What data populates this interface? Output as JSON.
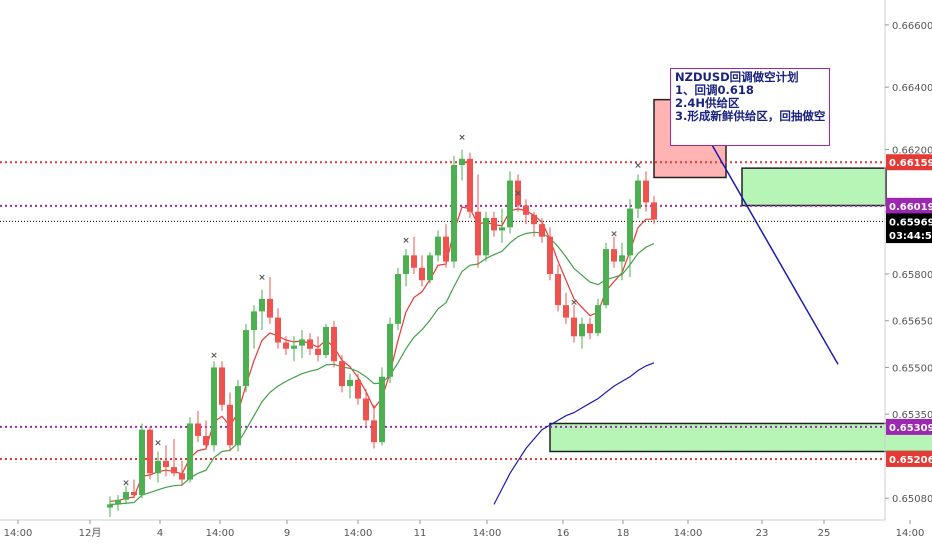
{
  "chart_data": {
    "type": "candlestick",
    "symbol": "NZDUSD",
    "timeframe_note": "4H",
    "ylim": [
      0.6501,
      0.6668
    ],
    "y_ticks": [
      "0.66600",
      "0.66400",
      "0.66200",
      "0.66000",
      "0.65800",
      "0.65650",
      "0.65500",
      "0.65350",
      "0.65080"
    ],
    "x_ticks": [
      "14:00",
      "12月",
      "4",
      "14:00",
      "9",
      "14:00",
      "11",
      "14:00",
      "16",
      "18",
      "14:00",
      "23",
      "25",
      "14:00"
    ],
    "price_labels": [
      {
        "text": "0.66159",
        "value": 0.66159,
        "color": "#e53935"
      },
      {
        "text": "0.66019",
        "value": 0.66019,
        "color": "#9c27b0"
      },
      {
        "text": "0.65969",
        "value": 0.65969,
        "color": "#000000"
      },
      {
        "text": "03:44:54",
        "value": 0.65925,
        "color": "#000000"
      },
      {
        "text": "0.65309",
        "value": 0.65309,
        "color": "#9c27b0"
      },
      {
        "text": "0.65206",
        "value": 0.65206,
        "color": "#e53935"
      }
    ],
    "horizontal_levels": [
      {
        "value": 0.66159,
        "color": "#e53935",
        "style": "dotted"
      },
      {
        "value": 0.66019,
        "color": "#9c27b0",
        "style": "dotted"
      },
      {
        "value": 0.65969,
        "color": "#000000",
        "style": "dotted-thin"
      },
      {
        "value": 0.65309,
        "color": "#9c27b0",
        "style": "dotted"
      },
      {
        "value": 0.65206,
        "color": "#e53935",
        "style": "dotted"
      }
    ],
    "zones": [
      {
        "name": "supply",
        "from_t": 68,
        "to_t": 77,
        "top": 0.6636,
        "bottom": 0.6611,
        "fill": "#ffb3b3"
      },
      {
        "name": "new-supply",
        "from_t": 79,
        "to_t": 97,
        "top": 0.6614,
        "bottom": 0.6602,
        "fill": "#b6f5b6"
      },
      {
        "name": "demand",
        "from_t": 55,
        "to_t": 109,
        "top": 0.6532,
        "bottom": 0.6523,
        "fill": "#b6f5b6"
      }
    ],
    "trendlines": [
      {
        "t1": 72,
        "v1": 0.6636,
        "t2": 91,
        "v2": 0.6551,
        "color": "#1a1ab3"
      },
      {
        "t1": 104,
        "v1": 0.6612,
        "t2": 124,
        "v2": 0.6533,
        "color": "#1a1ab3"
      }
    ],
    "candles": [
      [
        0.6505,
        0.65085,
        0.6502,
        0.6506
      ],
      [
        0.6506,
        0.6509,
        0.6504,
        0.65075
      ],
      [
        0.65075,
        0.6512,
        0.6506,
        0.651
      ],
      [
        0.651,
        0.6514,
        0.6508,
        0.6509
      ],
      [
        0.6509,
        0.6532,
        0.6508,
        0.653
      ],
      [
        0.653,
        0.6531,
        0.6514,
        0.6516
      ],
      [
        0.6516,
        0.6523,
        0.6513,
        0.652
      ],
      [
        0.652,
        0.6525,
        0.6515,
        0.6518
      ],
      [
        0.6518,
        0.6527,
        0.6515,
        0.6516
      ],
      [
        0.6516,
        0.652,
        0.6512,
        0.6514
      ],
      [
        0.6514,
        0.6534,
        0.6513,
        0.6532
      ],
      [
        0.6532,
        0.6536,
        0.6526,
        0.6528
      ],
      [
        0.6528,
        0.6533,
        0.6524,
        0.6525
      ],
      [
        0.6525,
        0.6552,
        0.6523,
        0.655
      ],
      [
        0.655,
        0.6552,
        0.6536,
        0.6538
      ],
      [
        0.6538,
        0.6542,
        0.6523,
        0.6525
      ],
      [
        0.6525,
        0.6546,
        0.6523,
        0.6544
      ],
      [
        0.6544,
        0.6564,
        0.6542,
        0.6562
      ],
      [
        0.6562,
        0.657,
        0.6556,
        0.6568
      ],
      [
        0.6568,
        0.6575,
        0.6562,
        0.6572
      ],
      [
        0.6572,
        0.6579,
        0.6564,
        0.6566
      ],
      [
        0.6566,
        0.6569,
        0.6556,
        0.6558
      ],
      [
        0.6558,
        0.656,
        0.6554,
        0.6556
      ],
      [
        0.6556,
        0.656,
        0.6552,
        0.6557
      ],
      [
        0.6557,
        0.6562,
        0.6553,
        0.6559
      ],
      [
        0.6559,
        0.6561,
        0.6554,
        0.6556
      ],
      [
        0.6556,
        0.656,
        0.6552,
        0.6554
      ],
      [
        0.6554,
        0.6564,
        0.6553,
        0.6563
      ],
      [
        0.6563,
        0.6565,
        0.655,
        0.6552
      ],
      [
        0.6552,
        0.6554,
        0.6542,
        0.6544
      ],
      [
        0.6544,
        0.6548,
        0.654,
        0.6546
      ],
      [
        0.6546,
        0.6548,
        0.6538,
        0.654
      ],
      [
        0.654,
        0.6543,
        0.6531,
        0.6533
      ],
      [
        0.6533,
        0.6538,
        0.6524,
        0.6526
      ],
      [
        0.6526,
        0.655,
        0.6525,
        0.6547
      ],
      [
        0.6547,
        0.6566,
        0.6545,
        0.6564
      ],
      [
        0.6564,
        0.6582,
        0.6562,
        0.658
      ],
      [
        0.658,
        0.6588,
        0.6576,
        0.6586
      ],
      [
        0.6586,
        0.6592,
        0.658,
        0.6582
      ],
      [
        0.6582,
        0.6586,
        0.6576,
        0.6578
      ],
      [
        0.6578,
        0.6587,
        0.6577,
        0.6586
      ],
      [
        0.6586,
        0.6594,
        0.6584,
        0.6592
      ],
      [
        0.6592,
        0.6596,
        0.6582,
        0.6584
      ],
      [
        0.6584,
        0.6618,
        0.6582,
        0.6615
      ],
      [
        0.6615,
        0.662,
        0.661,
        0.6617
      ],
      [
        0.6617,
        0.6619,
        0.6598,
        0.66
      ],
      [
        0.66,
        0.6612,
        0.6582,
        0.6586
      ],
      [
        0.6586,
        0.66,
        0.6584,
        0.6598
      ],
      [
        0.6598,
        0.66,
        0.6592,
        0.6594
      ],
      [
        0.6594,
        0.6601,
        0.659,
        0.6595
      ],
      [
        0.6595,
        0.6613,
        0.6593,
        0.661
      ],
      [
        0.661,
        0.6612,
        0.66,
        0.6602
      ],
      [
        0.6602,
        0.6604,
        0.6596,
        0.6599
      ],
      [
        0.6599,
        0.66,
        0.6592,
        0.6596
      ],
      [
        0.6596,
        0.6598,
        0.659,
        0.6592
      ],
      [
        0.6592,
        0.6595,
        0.6578,
        0.658
      ],
      [
        0.658,
        0.6583,
        0.6568,
        0.657
      ],
      [
        0.657,
        0.6574,
        0.6564,
        0.6566
      ],
      [
        0.6566,
        0.657,
        0.6558,
        0.656
      ],
      [
        0.656,
        0.6566,
        0.6556,
        0.6564
      ],
      [
        0.6564,
        0.6566,
        0.6559,
        0.6561
      ],
      [
        0.6561,
        0.6572,
        0.656,
        0.657
      ],
      [
        0.657,
        0.659,
        0.6569,
        0.6588
      ],
      [
        0.6588,
        0.6592,
        0.6582,
        0.6584
      ],
      [
        0.6584,
        0.659,
        0.6578,
        0.6586
      ],
      [
        0.6586,
        0.6604,
        0.6579,
        0.6601
      ],
      [
        0.6601,
        0.6612,
        0.6598,
        0.661
      ],
      [
        0.661,
        0.6613,
        0.66,
        0.6603
      ],
      [
        0.6603,
        0.6605,
        0.6596,
        0.65975
      ]
    ],
    "series": [
      {
        "name": "",
        "color": "#e53935",
        "values": [
          0.6507,
          0.65072,
          0.6508,
          0.65084,
          0.6515,
          0.65155,
          0.65165,
          0.6517,
          0.65166,
          0.65158,
          0.6521,
          0.65233,
          0.65238,
          0.65325,
          0.65343,
          0.65312,
          0.65355,
          0.65443,
          0.65522,
          0.65587,
          0.65611,
          0.65601,
          0.65588,
          0.65582,
          0.65585,
          0.65577,
          0.65565,
          0.65587,
          0.65565,
          0.65523,
          0.65502,
          0.65468,
          0.65422,
          0.65368,
          0.65402,
          0.65481,
          0.65587,
          0.65678,
          0.65725,
          0.65743,
          0.65782,
          0.65828,
          0.65832,
          0.65938,
          0.66015,
          0.6601,
          0.6596,
          0.65967,
          0.65958,
          0.65955,
          0.66003,
          0.66009,
          0.66003,
          0.65989,
          0.65966,
          0.65911,
          0.65841,
          0.6578,
          0.6572,
          0.65693,
          0.65666,
          0.65677,
          0.65745,
          0.65776,
          0.65804,
          0.65873,
          0.65949,
          0.65976,
          0.65976
        ]
      },
      {
        "name": "",
        "color": "#43a047",
        "values": [
          0.6506,
          0.65061,
          0.65064,
          0.65066,
          0.6509,
          0.65098,
          0.65107,
          0.65115,
          0.6512,
          0.65122,
          0.65145,
          0.6516,
          0.6517,
          0.6521,
          0.6523,
          0.65234,
          0.65258,
          0.653,
          0.65345,
          0.6539,
          0.6542,
          0.6544,
          0.65455,
          0.65468,
          0.6548,
          0.65488,
          0.65494,
          0.65508,
          0.6551,
          0.65502,
          0.65497,
          0.65487,
          0.6547,
          0.65448,
          0.6545,
          0.65475,
          0.65515,
          0.6556,
          0.65597,
          0.65621,
          0.65652,
          0.65688,
          0.65708,
          0.6576,
          0.65808,
          0.65828,
          0.65832,
          0.6585,
          0.65862,
          0.65873,
          0.659,
          0.6592,
          0.6593,
          0.65934,
          0.65932,
          0.65915,
          0.65888,
          0.65855,
          0.65818,
          0.65796,
          0.65774,
          0.65766,
          0.65782,
          0.65789,
          0.65798,
          0.6583,
          0.65866,
          0.65886,
          0.65898
        ]
      },
      {
        "name": "",
        "color": "#1a1ab3",
        "values": [
          null,
          null,
          null,
          null,
          null,
          null,
          null,
          null,
          null,
          null,
          null,
          null,
          null,
          null,
          null,
          null,
          null,
          null,
          null,
          null,
          null,
          null,
          null,
          null,
          null,
          null,
          null,
          null,
          null,
          null,
          null,
          null,
          null,
          null,
          null,
          null,
          null,
          null,
          null,
          null,
          null,
          null,
          null,
          null,
          null,
          null,
          null,
          null,
          0.6506,
          0.6511,
          0.6516,
          0.652,
          0.6524,
          0.6527,
          0.653,
          0.65315,
          0.6533,
          0.65345,
          0.65355,
          0.6537,
          0.65385,
          0.654,
          0.6542,
          0.6544,
          0.65455,
          0.6547,
          0.6549,
          0.65505,
          0.65515
        ]
      }
    ],
    "markers": [
      {
        "t": 2,
        "v": 0.6512
      },
      {
        "t": 6,
        "v": 0.6525
      },
      {
        "t": 13,
        "v": 0.6553
      },
      {
        "t": 19,
        "v": 0.6578
      },
      {
        "t": 37,
        "v": 0.659
      },
      {
        "t": 44,
        "v": 0.6623
      },
      {
        "t": 51,
        "v": 0.6605
      },
      {
        "t": 58,
        "v": 0.657
      },
      {
        "t": 63,
        "v": 0.6592
      },
      {
        "t": 66,
        "v": 0.6614
      }
    ]
  },
  "note": {
    "line1": "NZDUSD回调做空计划",
    "line2": "1、回调0.618",
    "line3": "2.4H供给区",
    "line4": "3.形成新鲜供给区，回抽做空"
  },
  "colors": {
    "bull": "#4caf50",
    "bear": "#ef5350",
    "axis_text": "#555555",
    "axis_line": "#cccccc"
  }
}
